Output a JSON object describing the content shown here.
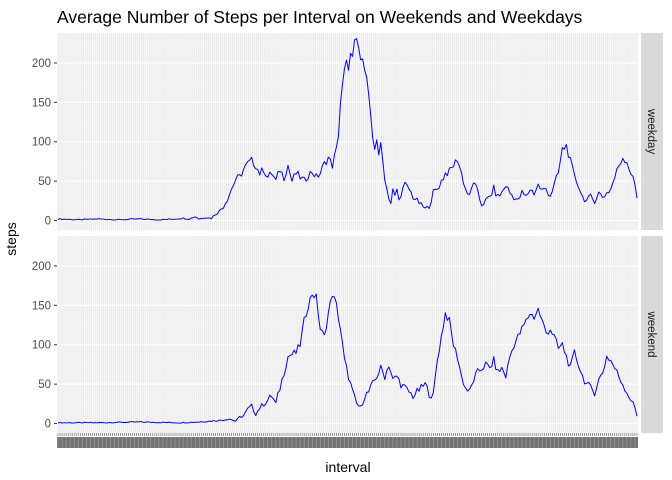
{
  "chart_data": {
    "type": "line",
    "title": "Average Number of Steps per Interval on Weekends and Weekdays",
    "xlabel": "interval",
    "ylabel": "steps",
    "ylim": [
      -12,
      238
    ],
    "y_ticks": [
      0,
      50,
      100,
      150,
      200
    ],
    "x_tick_labels": "one unreadable tick label per interval (288 categorical intervals)",
    "grid": true,
    "legend": "none",
    "line_color": "#0000ff",
    "panel_background": "#ebebeb",
    "strip_background": "#d9d9d9",
    "x_points": 288,
    "facets": [
      {
        "label": "weekday",
        "keypoints": [
          [
            0,
            2
          ],
          [
            10,
            1
          ],
          [
            20,
            2
          ],
          [
            30,
            1
          ],
          [
            40,
            2
          ],
          [
            50,
            1
          ],
          [
            58,
            2
          ],
          [
            62,
            3
          ],
          [
            65,
            2
          ],
          [
            68,
            5
          ],
          [
            70,
            2
          ],
          [
            73,
            4
          ],
          [
            76,
            3
          ],
          [
            78,
            8
          ],
          [
            80,
            12
          ],
          [
            82,
            18
          ],
          [
            84,
            28
          ],
          [
            86,
            40
          ],
          [
            88,
            52
          ],
          [
            90,
            55
          ],
          [
            92,
            65
          ],
          [
            94,
            72
          ],
          [
            96,
            76
          ],
          [
            98,
            70
          ],
          [
            100,
            60
          ],
          [
            102,
            65
          ],
          [
            104,
            55
          ],
          [
            106,
            60
          ],
          [
            108,
            50
          ],
          [
            110,
            65
          ],
          [
            112,
            55
          ],
          [
            114,
            70
          ],
          [
            116,
            50
          ],
          [
            118,
            60
          ],
          [
            120,
            55
          ],
          [
            122,
            50
          ],
          [
            124,
            58
          ],
          [
            126,
            62
          ],
          [
            128,
            55
          ],
          [
            130,
            60
          ],
          [
            132,
            72
          ],
          [
            134,
            80
          ],
          [
            136,
            70
          ],
          [
            138,
            90
          ],
          [
            139,
            110
          ],
          [
            140,
            150
          ],
          [
            141,
            170
          ],
          [
            142,
            190
          ],
          [
            143,
            200
          ],
          [
            144,
            195
          ],
          [
            145,
            210
          ],
          [
            146,
            205
          ],
          [
            147,
            225
          ],
          [
            148,
            230
          ],
          [
            149,
            220
          ],
          [
            150,
            200
          ],
          [
            151,
            210
          ],
          [
            152,
            195
          ],
          [
            153,
            180
          ],
          [
            154,
            160
          ],
          [
            155,
            130
          ],
          [
            156,
            100
          ],
          [
            157,
            90
          ],
          [
            158,
            105
          ],
          [
            159,
            85
          ],
          [
            160,
            95
          ],
          [
            161,
            75
          ],
          [
            162,
            55
          ],
          [
            163,
            40
          ],
          [
            164,
            30
          ],
          [
            165,
            22
          ],
          [
            166,
            38
          ],
          [
            167,
            30
          ],
          [
            168,
            40
          ],
          [
            169,
            25
          ],
          [
            170,
            35
          ],
          [
            172,
            45
          ],
          [
            174,
            40
          ],
          [
            176,
            30
          ],
          [
            178,
            25
          ],
          [
            180,
            20
          ],
          [
            182,
            15
          ],
          [
            184,
            18
          ],
          [
            186,
            35
          ],
          [
            188,
            40
          ],
          [
            190,
            50
          ],
          [
            192,
            60
          ],
          [
            194,
            62
          ],
          [
            196,
            70
          ],
          [
            198,
            78
          ],
          [
            200,
            60
          ],
          [
            202,
            40
          ],
          [
            204,
            30
          ],
          [
            206,
            50
          ],
          [
            208,
            35
          ],
          [
            210,
            20
          ],
          [
            212,
            25
          ],
          [
            214,
            30
          ],
          [
            216,
            40
          ],
          [
            218,
            30
          ],
          [
            220,
            35
          ],
          [
            222,
            45
          ],
          [
            224,
            35
          ],
          [
            226,
            30
          ],
          [
            228,
            25
          ],
          [
            230,
            35
          ],
          [
            232,
            30
          ],
          [
            234,
            40
          ],
          [
            236,
            35
          ],
          [
            238,
            45
          ],
          [
            240,
            38
          ],
          [
            242,
            40
          ],
          [
            244,
            32
          ],
          [
            246,
            45
          ],
          [
            248,
            60
          ],
          [
            250,
            90
          ],
          [
            252,
            95
          ],
          [
            254,
            75
          ],
          [
            256,
            55
          ],
          [
            258,
            45
          ],
          [
            260,
            30
          ],
          [
            262,
            25
          ],
          [
            264,
            30
          ],
          [
            266,
            25
          ],
          [
            268,
            35
          ],
          [
            270,
            30
          ],
          [
            272,
            35
          ],
          [
            274,
            40
          ],
          [
            276,
            55
          ],
          [
            278,
            70
          ],
          [
            280,
            80
          ],
          [
            282,
            75
          ],
          [
            284,
            60
          ],
          [
            286,
            45
          ],
          [
            287,
            30
          ]
        ]
      },
      {
        "label": "weekend",
        "keypoints": [
          [
            0,
            1
          ],
          [
            20,
            1
          ],
          [
            40,
            2
          ],
          [
            60,
            1
          ],
          [
            70,
            2
          ],
          [
            80,
            4
          ],
          [
            85,
            6
          ],
          [
            88,
            3
          ],
          [
            90,
            8
          ],
          [
            92,
            10
          ],
          [
            94,
            18
          ],
          [
            96,
            22
          ],
          [
            98,
            12
          ],
          [
            100,
            20
          ],
          [
            102,
            25
          ],
          [
            104,
            30
          ],
          [
            106,
            35
          ],
          [
            108,
            25
          ],
          [
            110,
            45
          ],
          [
            112,
            65
          ],
          [
            114,
            85
          ],
          [
            116,
            88
          ],
          [
            118,
            90
          ],
          [
            120,
            100
          ],
          [
            122,
            130
          ],
          [
            124,
            150
          ],
          [
            126,
            165
          ],
          [
            128,
            160
          ],
          [
            130,
            120
          ],
          [
            132,
            110
          ],
          [
            134,
            140
          ],
          [
            136,
            165
          ],
          [
            138,
            150
          ],
          [
            140,
            120
          ],
          [
            142,
            80
          ],
          [
            144,
            60
          ],
          [
            146,
            40
          ],
          [
            148,
            25
          ],
          [
            150,
            20
          ],
          [
            152,
            35
          ],
          [
            154,
            40
          ],
          [
            156,
            50
          ],
          [
            158,
            60
          ],
          [
            160,
            70
          ],
          [
            162,
            60
          ],
          [
            164,
            75
          ],
          [
            166,
            55
          ],
          [
            168,
            60
          ],
          [
            170,
            50
          ],
          [
            172,
            45
          ],
          [
            174,
            40
          ],
          [
            176,
            35
          ],
          [
            178,
            40
          ],
          [
            180,
            45
          ],
          [
            182,
            50
          ],
          [
            184,
            38
          ],
          [
            186,
            35
          ],
          [
            188,
            80
          ],
          [
            190,
            110
          ],
          [
            192,
            140
          ],
          [
            194,
            130
          ],
          [
            196,
            100
          ],
          [
            198,
            85
          ],
          [
            200,
            60
          ],
          [
            202,
            45
          ],
          [
            204,
            40
          ],
          [
            206,
            55
          ],
          [
            208,
            65
          ],
          [
            210,
            70
          ],
          [
            212,
            75
          ],
          [
            214,
            70
          ],
          [
            216,
            80
          ],
          [
            218,
            65
          ],
          [
            220,
            70
          ],
          [
            222,
            60
          ],
          [
            224,
            85
          ],
          [
            226,
            100
          ],
          [
            228,
            110
          ],
          [
            230,
            120
          ],
          [
            232,
            130
          ],
          [
            234,
            140
          ],
          [
            236,
            135
          ],
          [
            238,
            145
          ],
          [
            240,
            130
          ],
          [
            242,
            115
          ],
          [
            244,
            120
          ],
          [
            246,
            110
          ],
          [
            248,
            95
          ],
          [
            250,
            100
          ],
          [
            252,
            85
          ],
          [
            254,
            70
          ],
          [
            256,
            90
          ],
          [
            258,
            75
          ],
          [
            260,
            60
          ],
          [
            262,
            50
          ],
          [
            264,
            45
          ],
          [
            266,
            40
          ],
          [
            268,
            55
          ],
          [
            270,
            65
          ],
          [
            272,
            85
          ],
          [
            274,
            80
          ],
          [
            276,
            70
          ],
          [
            278,
            60
          ],
          [
            280,
            50
          ],
          [
            282,
            40
          ],
          [
            284,
            30
          ],
          [
            286,
            20
          ],
          [
            287,
            10
          ]
        ]
      }
    ]
  }
}
